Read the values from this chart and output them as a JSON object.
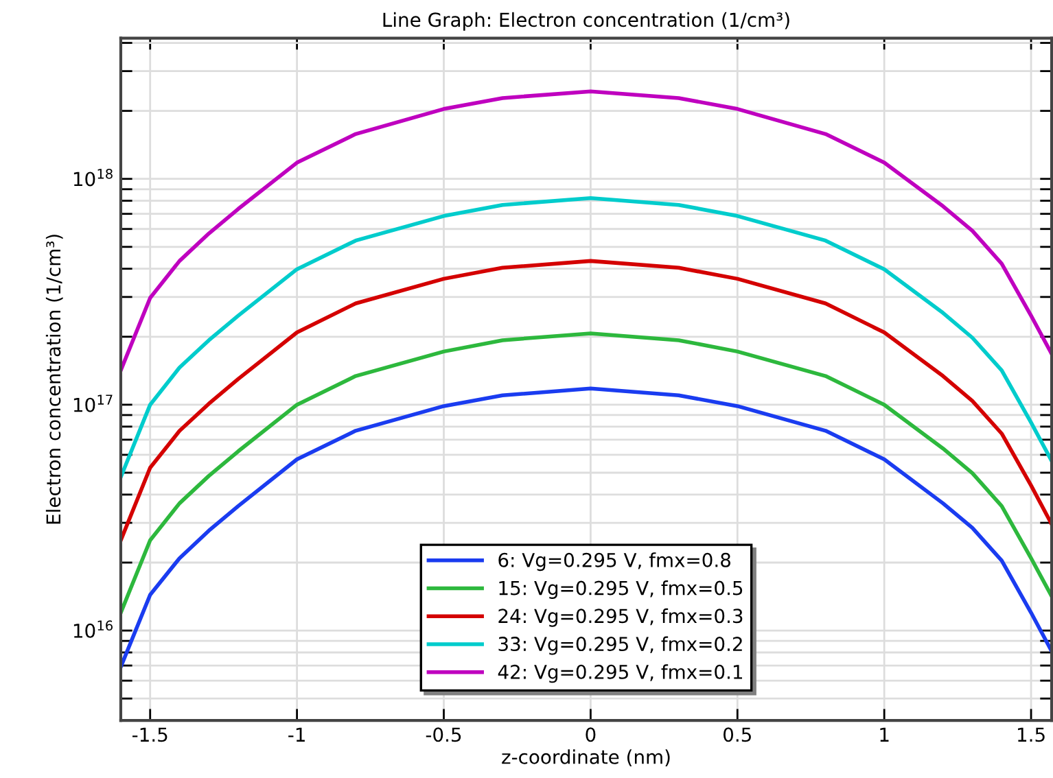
{
  "chart_data": {
    "type": "line",
    "title": "Line Graph: Electron concentration (1/cm³)",
    "xlabel": "z-coordinate (nm)",
    "ylabel": "Electron concentration (1/cm³)",
    "x": [
      -1.6,
      -1.5,
      -1.4,
      -1.3,
      -1.2,
      -1,
      -0.8,
      -0.5,
      -0.3,
      0,
      0.3,
      0.5,
      0.8,
      1,
      1.2,
      1.3,
      1.4,
      1.5,
      1.57
    ],
    "series": [
      {
        "name": "6: Vg=0.295 V, fmx=0.8",
        "color": "#1a3cf0",
        "values": [
          6900000000000000.0,
          1.44e+16,
          2.09e+16,
          2.77e+16,
          3.56e+16,
          5.73e+16,
          7.67e+16,
          9.86e+16,
          1.1e+17,
          1.18e+17,
          1.1e+17,
          9.86e+16,
          7.67e+16,
          5.73e+16,
          3.66e+16,
          2.85e+16,
          2.04e+16,
          1.2e+16,
          8100000000000000.0
        ]
      },
      {
        "name": "15: Vg=0.295 V, fmx=0.5",
        "color": "#2db83d",
        "values": [
          1.2e+16,
          2.51e+16,
          3.66e+16,
          4.84e+16,
          6.22e+16,
          1e+17,
          1.34e+17,
          1.72e+17,
          1.93e+17,
          2.07e+17,
          1.93e+17,
          1.72e+17,
          1.34e+17,
          1e+17,
          6.4e+16,
          4.98e+16,
          3.56e+16,
          2.09e+16,
          1.42e+16
        ]
      },
      {
        "name": "24: Vg=0.295 V, fmx=0.3",
        "color": "#d40000",
        "values": [
          2.51e+16,
          5.26e+16,
          7.66e+16,
          1.01e+17,
          1.3e+17,
          2.09e+17,
          2.81e+17,
          3.61e+17,
          4.04e+17,
          4.33e+17,
          4.04e+17,
          3.61e+17,
          2.81e+17,
          2.09e+17,
          1.34e+17,
          1.04e+17,
          7.45e+16,
          4.39e+16,
          2.96e+16
        ]
      },
      {
        "name": "33: Vg=0.295 V, fmx=0.2",
        "color": "#00cccc",
        "values": [
          4.78e+16,
          1e+17,
          1.46e+17,
          1.93e+17,
          2.48e+17,
          3.98e+17,
          5.33e+17,
          6.85e+17,
          7.67e+17,
          8.22e+17,
          7.67e+17,
          6.85e+17,
          5.33e+17,
          3.98e+17,
          2.55e+17,
          1.98e+17,
          1.42e+17,
          8.34e+16,
          5.64e+16
        ]
      },
      {
        "name": "42: Vg=0.295 V, fmx=0.1",
        "color": "#bf00bf",
        "values": [
          1.42e+17,
          2.97e+17,
          4.33e+17,
          5.73e+17,
          7.36e+17,
          1.18e+18,
          1.58e+18,
          2.04e+18,
          2.28e+18,
          2.44e+18,
          2.28e+18,
          2.04e+18,
          1.58e+18,
          1.18e+18,
          7.57e+17,
          5.89e+17,
          4.21e+17,
          2.48e+17,
          1.68e+17
        ]
      }
    ],
    "xlim": [
      -1.6,
      1.57
    ],
    "xticks": [
      -1.5,
      -1,
      -0.5,
      0,
      0.5,
      1,
      1.5
    ],
    "ylim": [
      4000000000000000.0,
      4.2e+18
    ],
    "log": true,
    "yticks": [
      {
        "value": 5000000000000000.0,
        "label": null
      },
      {
        "value": 6000000000000000.0,
        "label": null
      },
      {
        "value": 7000000000000000.0,
        "label": null
      },
      {
        "value": 8000000000000000.0,
        "label": null
      },
      {
        "value": 9000000000000000.0,
        "label": null
      },
      {
        "value": 1e+16,
        "label": "10$^{16}$"
      },
      {
        "value": 2e+16,
        "label": null
      },
      {
        "value": 3e+16,
        "label": null
      },
      {
        "value": 4e+16,
        "label": null
      },
      {
        "value": 5e+16,
        "label": null
      },
      {
        "value": 6e+16,
        "label": null
      },
      {
        "value": 7e+16,
        "label": null
      },
      {
        "value": 8e+16,
        "label": null
      },
      {
        "value": 9e+16,
        "label": null
      },
      {
        "value": 1e+17,
        "label": "10$^{17}$"
      },
      {
        "value": 2e+17,
        "label": null
      },
      {
        "value": 3e+17,
        "label": null
      },
      {
        "value": 4e+17,
        "label": null
      },
      {
        "value": 5e+17,
        "label": null
      },
      {
        "value": 6e+17,
        "label": null
      },
      {
        "value": 7e+17,
        "label": null
      },
      {
        "value": 8e+17,
        "label": null
      },
      {
        "value": 9e+17,
        "label": null
      },
      {
        "value": 1e+18,
        "label": "10$^{18}$"
      },
      {
        "value": 2e+18,
        "label": null
      },
      {
        "value": 3e+18,
        "label": null
      },
      {
        "value": 4e+18,
        "label": null
      }
    ],
    "grid": true,
    "legend": "bottom",
    "marker": "none",
    "line_style": "solid"
  }
}
